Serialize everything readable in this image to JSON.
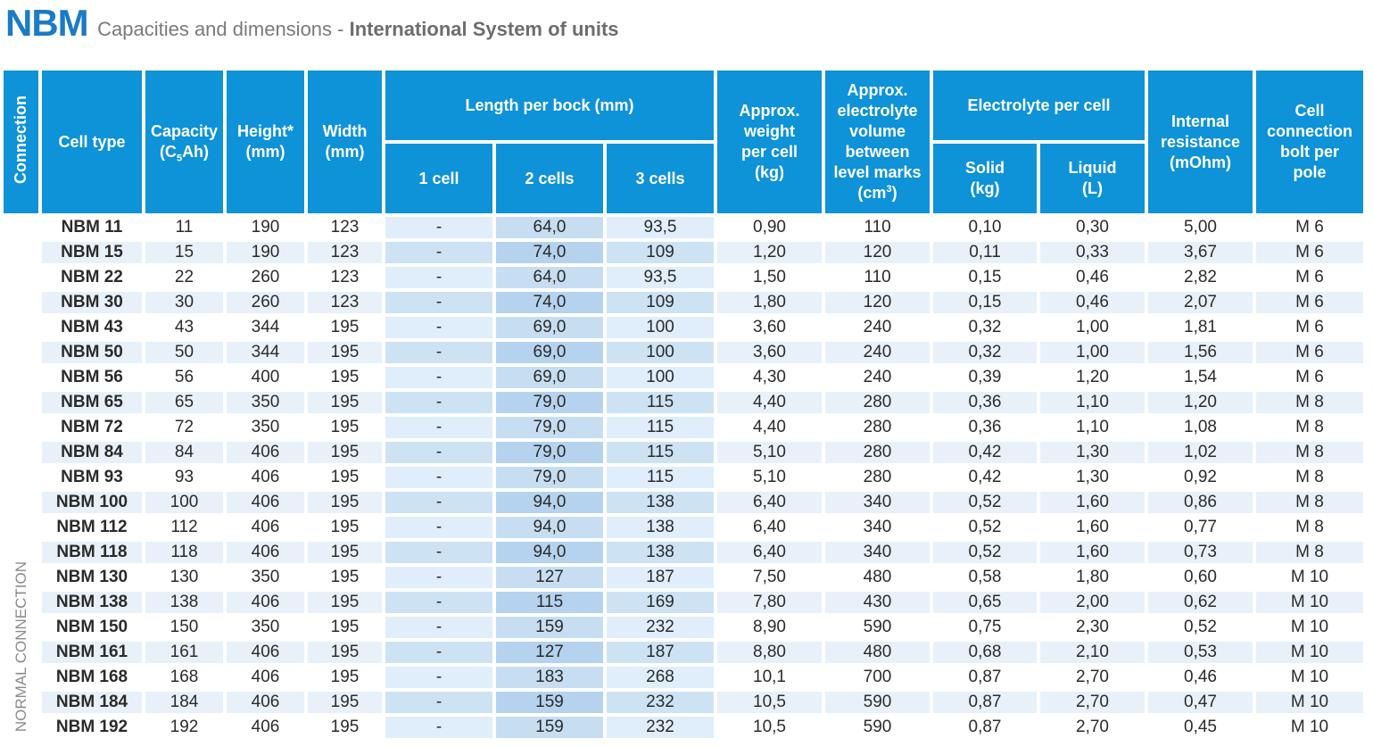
{
  "title": {
    "brand": "NBM",
    "subtitle_plain": "Capacities and dimensions - ",
    "subtitle_bold": "International System of units"
  },
  "headers": {
    "connection": "Connection",
    "cell_type": "Cell type",
    "capacity_1": "Capacity",
    "capacity_2a": "(C",
    "capacity_2sub": "5",
    "capacity_2b": "Ah)",
    "height_1": "Height*",
    "height_2": "(mm)",
    "width_1": "Width",
    "width_2": "(mm)",
    "length_group": "Length per bock (mm)",
    "len_1cell": "1 cell",
    "len_2cells": "2 cells",
    "len_3cells": "3 cells",
    "weight_1": "Approx.",
    "weight_2": "weight",
    "weight_3": "per cell",
    "weight_4": "(kg)",
    "volume_1": "Approx.",
    "volume_2": "electrolyte",
    "volume_3": "volume",
    "volume_4": "between",
    "volume_5": "level marks",
    "volume_6a": "(cm",
    "volume_6sup": "3",
    "volume_6b": ")",
    "electrolyte_group": "Electrolyte per cell",
    "solid_1": "Solid",
    "solid_2": "(kg)",
    "liquid_1": "Liquid",
    "liquid_2": "(L)",
    "resistance_1": "Internal",
    "resistance_2": "resistance",
    "resistance_3": "(mOhm)",
    "bolt_1": "Cell",
    "bolt_2": "connection",
    "bolt_3": "bolt per",
    "bolt_4": "pole"
  },
  "connection_label": "NORMAL CONNECTION",
  "rows": [
    [
      "NBM 11",
      "11",
      "190",
      "123",
      "-",
      "64,0",
      "93,5",
      "0,90",
      "110",
      "0,10",
      "0,30",
      "5,00",
      "M 6"
    ],
    [
      "NBM 15",
      "15",
      "190",
      "123",
      "-",
      "74,0",
      "109",
      "1,20",
      "120",
      "0,11",
      "0,33",
      "3,67",
      "M 6"
    ],
    [
      "NBM 22",
      "22",
      "260",
      "123",
      "-",
      "64,0",
      "93,5",
      "1,50",
      "110",
      "0,15",
      "0,46",
      "2,82",
      "M 6"
    ],
    [
      "NBM 30",
      "30",
      "260",
      "123",
      "-",
      "74,0",
      "109",
      "1,80",
      "120",
      "0,15",
      "0,46",
      "2,07",
      "M 6"
    ],
    [
      "NBM 43",
      "43",
      "344",
      "195",
      "-",
      "69,0",
      "100",
      "3,60",
      "240",
      "0,32",
      "1,00",
      "1,81",
      "M 6"
    ],
    [
      "NBM 50",
      "50",
      "344",
      "195",
      "-",
      "69,0",
      "100",
      "3,60",
      "240",
      "0,32",
      "1,00",
      "1,56",
      "M 6"
    ],
    [
      "NBM 56",
      "56",
      "400",
      "195",
      "-",
      "69,0",
      "100",
      "4,30",
      "240",
      "0,39",
      "1,20",
      "1,54",
      "M 6"
    ],
    [
      "NBM 65",
      "65",
      "350",
      "195",
      "-",
      "79,0",
      "115",
      "4,40",
      "280",
      "0,36",
      "1,10",
      "1,20",
      "M 8"
    ],
    [
      "NBM 72",
      "72",
      "350",
      "195",
      "-",
      "79,0",
      "115",
      "4,40",
      "280",
      "0,36",
      "1,10",
      "1,08",
      "M 8"
    ],
    [
      "NBM 84",
      "84",
      "406",
      "195",
      "-",
      "79,0",
      "115",
      "5,10",
      "280",
      "0,42",
      "1,30",
      "1,02",
      "M 8"
    ],
    [
      "NBM 93",
      "93",
      "406",
      "195",
      "-",
      "79,0",
      "115",
      "5,10",
      "280",
      "0,42",
      "1,30",
      "0,92",
      "M 8"
    ],
    [
      "NBM 100",
      "100",
      "406",
      "195",
      "-",
      "94,0",
      "138",
      "6,40",
      "340",
      "0,52",
      "1,60",
      "0,86",
      "M 8"
    ],
    [
      "NBM 112",
      "112",
      "406",
      "195",
      "-",
      "94,0",
      "138",
      "6,40",
      "340",
      "0,52",
      "1,60",
      "0,77",
      "M 8"
    ],
    [
      "NBM 118",
      "118",
      "406",
      "195",
      "-",
      "94,0",
      "138",
      "6,40",
      "340",
      "0,52",
      "1,60",
      "0,73",
      "M 8"
    ],
    [
      "NBM 130",
      "130",
      "350",
      "195",
      "-",
      "127",
      "187",
      "7,50",
      "480",
      "0,58",
      "1,80",
      "0,60",
      "M 10"
    ],
    [
      "NBM 138",
      "138",
      "406",
      "195",
      "-",
      "115",
      "169",
      "7,80",
      "430",
      "0,65",
      "2,00",
      "0,62",
      "M 10"
    ],
    [
      "NBM 150",
      "150",
      "350",
      "195",
      "-",
      "159",
      "232",
      "8,90",
      "590",
      "0,75",
      "2,30",
      "0,52",
      "M 10"
    ],
    [
      "NBM 161",
      "161",
      "406",
      "195",
      "-",
      "127",
      "187",
      "8,80",
      "480",
      "0,68",
      "2,10",
      "0,53",
      "M 10"
    ],
    [
      "NBM 168",
      "168",
      "406",
      "195",
      "-",
      "183",
      "268",
      "10,1",
      "700",
      "0,87",
      "2,70",
      "0,46",
      "M 10"
    ],
    [
      "NBM 184",
      "184",
      "406",
      "195",
      "-",
      "159",
      "232",
      "10,5",
      "590",
      "0,87",
      "2,70",
      "0,47",
      "M 10"
    ],
    [
      "NBM 192",
      "192",
      "406",
      "195",
      "-",
      "159",
      "232",
      "10,5",
      "590",
      "0,87",
      "2,70",
      "0,45",
      "M 10"
    ]
  ]
}
